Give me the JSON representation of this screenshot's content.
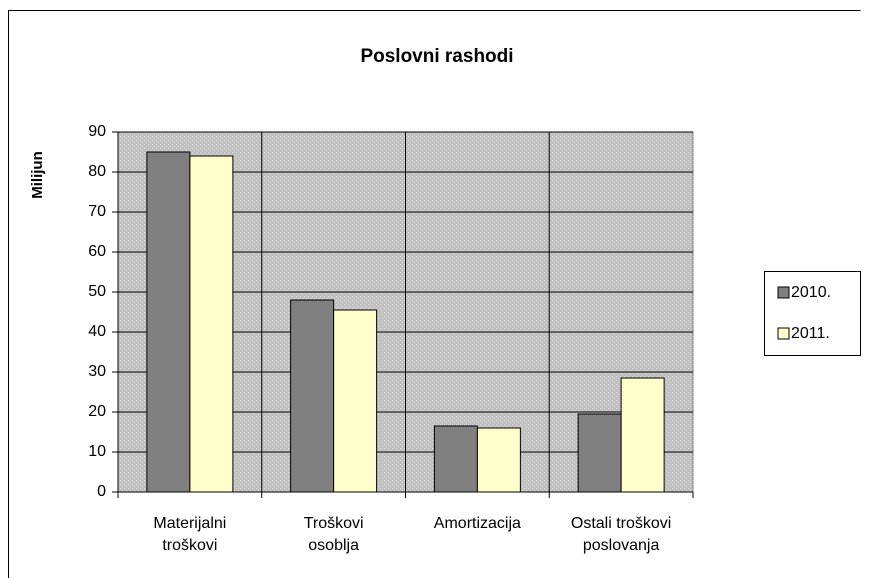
{
  "chart_data": {
    "type": "bar",
    "title": "Poslovni rashodi",
    "y_label": "Milijun",
    "categories": [
      "Materijalni\ntroškovi",
      "Troškovi\nosoblja",
      "Amortizacija",
      "Ostali troškovi\nposlovanja"
    ],
    "series": [
      {
        "name": "2010.",
        "color": "#808080",
        "values": [
          85,
          48,
          16.5,
          19.5
        ]
      },
      {
        "name": "2011.",
        "color": "#ffffcc",
        "values": [
          84,
          45.5,
          16,
          28.5
        ]
      }
    ],
    "ylim": [
      0,
      90
    ],
    "yticks": [
      0,
      10,
      20,
      30,
      40,
      50,
      60,
      70,
      80,
      90
    ],
    "grid": true,
    "legend": "right"
  }
}
